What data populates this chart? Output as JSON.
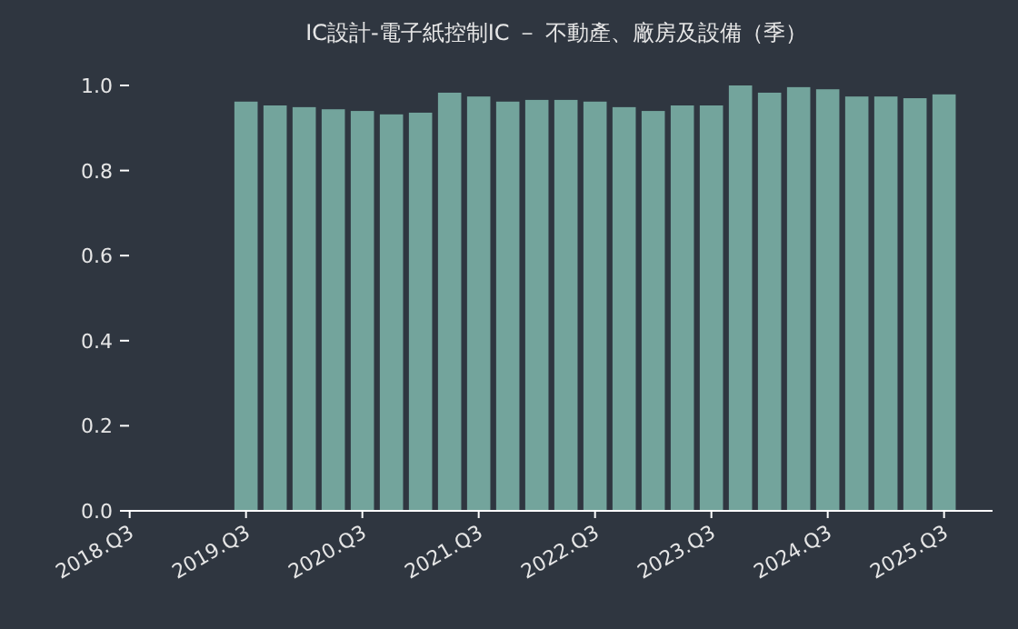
{
  "chart_data": {
    "type": "bar",
    "title": "IC設計-電子紙控制IC － 不動產、廠房及設備（季）",
    "color": "#73a49c",
    "x": [
      "2019-07",
      "2019-10",
      "2020-01",
      "2020-04",
      "2020-07",
      "2020-10",
      "2021-01",
      "2021-04",
      "2021-07",
      "2021-10",
      "2022-01",
      "2022-04",
      "2022-07",
      "2022-10",
      "2023-01",
      "2023-04",
      "2023-07",
      "2023-10",
      "2024-01",
      "2024-04",
      "2024-07",
      "2024-10",
      "2025-01",
      "2025-04",
      "2025-07"
    ],
    "values": [
      0.962,
      0.953,
      0.949,
      0.944,
      0.94,
      0.932,
      0.936,
      0.983,
      0.974,
      0.962,
      0.966,
      0.966,
      0.962,
      0.949,
      0.94,
      0.953,
      0.953,
      1.0,
      0.983,
      0.996,
      0.991,
      0.974,
      0.974,
      0.97,
      0.979
    ],
    "xlim": [
      "2018-06",
      "2025-12"
    ],
    "xticks": [
      {
        "value": "2018-07",
        "label": "2018.Q3"
      },
      {
        "value": "2019-07",
        "label": "2019.Q3"
      },
      {
        "value": "2020-07",
        "label": "2020.Q3"
      },
      {
        "value": "2021-07",
        "label": "2021.Q3"
      },
      {
        "value": "2022-07",
        "label": "2022.Q3"
      },
      {
        "value": "2023-07",
        "label": "2023.Q3"
      },
      {
        "value": "2024-07",
        "label": "2024.Q3"
      },
      {
        "value": "2025-07",
        "label": "2025.Q3"
      }
    ],
    "ylim": [
      0,
      1.0
    ],
    "yticks": [
      {
        "value": 0,
        "label": "0.0"
      },
      {
        "value": 0.2,
        "label": "0.2"
      },
      {
        "value": 0.4,
        "label": "0.4"
      },
      {
        "value": 0.6,
        "label": "0.6"
      },
      {
        "value": 0.8,
        "label": "0.8"
      },
      {
        "value": 1.0,
        "label": "1.0"
      }
    ],
    "grid": false
  }
}
